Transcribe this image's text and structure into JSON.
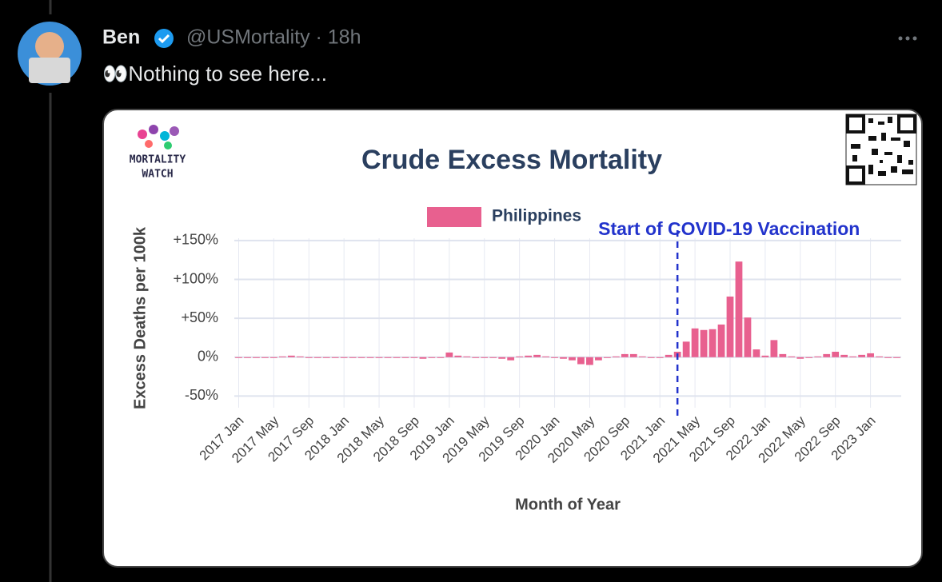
{
  "tweet": {
    "name": "Ben",
    "meta": "@USMortality · 18h",
    "text": "👀Nothing to see here..."
  },
  "logo": {
    "lines": [
      "MORTALITY",
      "WATCH"
    ]
  },
  "chart_data": {
    "type": "bar",
    "title": "Crude Excess Mortality",
    "xlabel": "Month of Year",
    "ylabel": "Excess Deaths per 100k",
    "categories": [
      "2017 Jan",
      null,
      null,
      null,
      "2017 May",
      null,
      null,
      null,
      "2017 Sep",
      null,
      null,
      null,
      "2018 Jan",
      null,
      null,
      null,
      "2018 May",
      null,
      null,
      null,
      "2018 Sep",
      null,
      null,
      null,
      "2019 Jan",
      null,
      null,
      null,
      "2019 May",
      null,
      null,
      null,
      "2019 Sep",
      null,
      null,
      null,
      "2020 Jan",
      null,
      null,
      null,
      "2020 May",
      null,
      null,
      null,
      "2020 Sep",
      null,
      null,
      null,
      "2021 Jan",
      null,
      null,
      null,
      "2021 May",
      null,
      null,
      null,
      "2021 Sep",
      null,
      null,
      null,
      "2022 Jan",
      null,
      null,
      null,
      "2022 May",
      null,
      null,
      null,
      "2022 Sep",
      null,
      null,
      null,
      "2023 Jan",
      null,
      null,
      null
    ],
    "series": [
      {
        "name": "Philippines",
        "color": "#e8608f",
        "values": [
          0,
          0,
          0,
          0,
          0,
          1,
          2,
          1,
          -1,
          -1,
          -1,
          0,
          -1,
          0,
          -1,
          -1,
          -1,
          0,
          -1,
          -1,
          0,
          -2,
          0,
          0,
          6,
          2,
          1,
          0,
          0,
          0,
          -2,
          -4,
          1,
          2,
          3,
          1,
          -1,
          -2,
          -4,
          -9,
          -10,
          -4,
          -1,
          1,
          4,
          4,
          1,
          -1,
          0,
          3,
          7,
          20,
          37,
          35,
          36,
          42,
          78,
          123,
          51,
          10,
          2,
          22,
          4,
          1,
          -2,
          -1,
          1,
          4,
          7,
          3,
          1,
          3,
          5,
          1,
          -1,
          -1
        ]
      }
    ],
    "ylim": [
      -65,
      153
    ],
    "yticks": [
      {
        "value": -50,
        "label": "-50%"
      },
      {
        "value": 0,
        "label": "0%"
      },
      {
        "value": 50,
        "label": "+50%"
      },
      {
        "value": 100,
        "label": "+100%"
      },
      {
        "value": 150,
        "label": "+150%"
      }
    ],
    "grid": true,
    "annotation": {
      "text": "Start of COVID-19 Vaccination",
      "x": "2021 Mar"
    }
  }
}
